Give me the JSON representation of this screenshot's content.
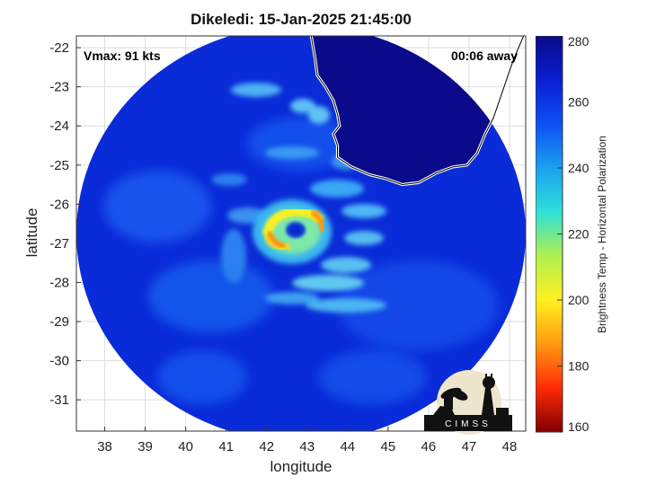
{
  "title": "Dikeledi: 15-Jan-2025 21:45:00",
  "vmax_label": "Vmax: 91 kts",
  "time_away": "00:06 away",
  "xlabel": "longitude",
  "ylabel": "latitude",
  "colorbar_label": "Brightness Temp - Horizontal Polarization",
  "logo_text": "CIMSS",
  "x_ticks": [
    38,
    39,
    40,
    41,
    42,
    43,
    44,
    45,
    46,
    47,
    48
  ],
  "y_ticks": [
    -22,
    -23,
    -24,
    -25,
    -26,
    -27,
    -28,
    -29,
    -30,
    -31
  ],
  "xlim": [
    37.3,
    48.4
  ],
  "ylim": [
    -31.8,
    -21.7
  ],
  "colorbar": {
    "ticks": [
      280,
      260,
      240,
      220,
      200,
      180,
      160
    ],
    "range": [
      160,
      280
    ],
    "colors": [
      "#0b0a8a",
      "#0a1ed0",
      "#0f4ff5",
      "#1aa0f0",
      "#2fe0d8",
      "#b0f050",
      "#fff020",
      "#ff9a10",
      "#ff2a08",
      "#800000"
    ]
  },
  "map": {
    "storm_center": {
      "lon": 42.7,
      "lat": -26.7
    },
    "swath_center": {
      "lon": 42.85,
      "lat": -26.75
    },
    "coastline": [
      [
        43.1,
        -21.7
      ],
      [
        43.2,
        -22.3
      ],
      [
        43.25,
        -22.7
      ],
      [
        43.45,
        -23.0
      ],
      [
        43.65,
        -23.35
      ],
      [
        43.75,
        -23.7
      ],
      [
        43.8,
        -24.0
      ],
      [
        43.65,
        -24.2
      ],
      [
        43.75,
        -24.5
      ],
      [
        43.75,
        -24.8
      ],
      [
        44.1,
        -25.05
      ],
      [
        44.55,
        -25.25
      ],
      [
        44.95,
        -25.35
      ],
      [
        45.35,
        -25.5
      ],
      [
        45.75,
        -25.45
      ],
      [
        46.2,
        -25.2
      ],
      [
        46.6,
        -25.05
      ],
      [
        46.95,
        -25.0
      ],
      [
        47.2,
        -24.7
      ],
      [
        47.4,
        -24.2
      ],
      [
        47.6,
        -23.8
      ],
      [
        47.8,
        -23.2
      ],
      [
        48.1,
        -22.3
      ],
      [
        48.35,
        -21.7
      ]
    ]
  },
  "colors": {
    "land": "#0b0a8a",
    "ocean": "#0a2bd8",
    "background": "#ffffff"
  }
}
